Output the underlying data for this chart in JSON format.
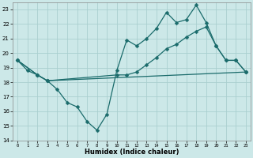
{
  "xlabel": "Humidex (Indice chaleur)",
  "background_color": "#cce8e8",
  "grid_color": "#aacfcf",
  "line_color": "#1a6b6b",
  "xlim": [
    -0.5,
    23.5
  ],
  "ylim": [
    14,
    23.5
  ],
  "yticks": [
    14,
    15,
    16,
    17,
    18,
    19,
    20,
    21,
    22,
    23
  ],
  "xticks": [
    0,
    1,
    2,
    3,
    4,
    5,
    6,
    7,
    8,
    9,
    10,
    11,
    12,
    13,
    14,
    15,
    16,
    17,
    18,
    19,
    20,
    21,
    22,
    23
  ],
  "line1_x": [
    0,
    1,
    2,
    3,
    4,
    5,
    6,
    7,
    8,
    9,
    10,
    11,
    12,
    13,
    14,
    15,
    16,
    17,
    18,
    19,
    20,
    21,
    22,
    23
  ],
  "line1_y": [
    19.5,
    18.8,
    18.5,
    18.1,
    17.5,
    16.6,
    16.3,
    15.3,
    14.7,
    15.8,
    18.8,
    20.9,
    20.5,
    21.0,
    21.7,
    22.8,
    22.1,
    22.3,
    23.3,
    22.1,
    20.5,
    19.5,
    19.5,
    18.7
  ],
  "line2_x": [
    0,
    2,
    3,
    10,
    11,
    12,
    13,
    14,
    15,
    16,
    17,
    18,
    19,
    20,
    21,
    22,
    23
  ],
  "line2_y": [
    19.5,
    18.5,
    18.1,
    18.5,
    18.5,
    18.7,
    19.2,
    19.7,
    20.3,
    20.6,
    21.1,
    21.5,
    21.8,
    20.5,
    19.5,
    19.5,
    18.7
  ],
  "line3_x": [
    0,
    2,
    3,
    23
  ],
  "line3_y": [
    19.5,
    18.5,
    18.1,
    18.7
  ],
  "marker": "D",
  "marker_size": 2.5,
  "linewidth": 0.9
}
